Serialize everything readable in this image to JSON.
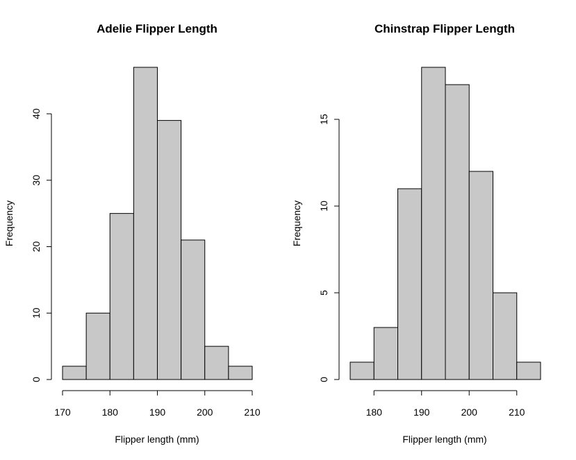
{
  "chart_data": [
    {
      "type": "bar",
      "title": "Adelie Flipper Length",
      "xlabel": "Flipper length (mm)",
      "ylabel": "Frequency",
      "bins": [
        [
          170,
          175
        ],
        [
          175,
          180
        ],
        [
          180,
          185
        ],
        [
          185,
          190
        ],
        [
          190,
          195
        ],
        [
          195,
          200
        ],
        [
          200,
          205
        ],
        [
          205,
          210
        ]
      ],
      "values": [
        2,
        10,
        25,
        47,
        39,
        21,
        5,
        2
      ],
      "xlim": [
        170,
        210
      ],
      "ylim": [
        0,
        47
      ],
      "xticks": [
        170,
        180,
        190,
        200,
        210
      ],
      "yticks": [
        0,
        10,
        20,
        30,
        40
      ],
      "bar_color": "#c8c8c8",
      "grid": false
    },
    {
      "type": "bar",
      "title": "Chinstrap Flipper Length",
      "xlabel": "Flipper length (mm)",
      "ylabel": "Frequency",
      "bins": [
        [
          175,
          180
        ],
        [
          180,
          185
        ],
        [
          185,
          190
        ],
        [
          190,
          195
        ],
        [
          195,
          200
        ],
        [
          200,
          205
        ],
        [
          205,
          210
        ],
        [
          210,
          215
        ]
      ],
      "values": [
        1,
        3,
        11,
        18,
        17,
        12,
        5,
        1
      ],
      "xlim": [
        175,
        215
      ],
      "ylim": [
        0,
        18
      ],
      "xticks": [
        180,
        190,
        200,
        210
      ],
      "yticks": [
        0,
        5,
        10,
        15
      ],
      "bar_color": "#c8c8c8",
      "grid": false
    }
  ]
}
